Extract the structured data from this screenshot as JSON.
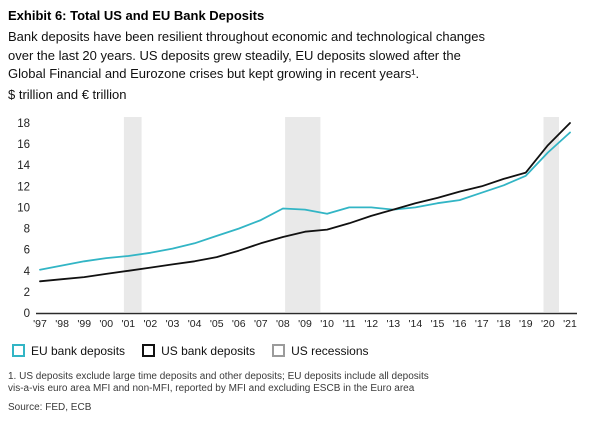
{
  "exhibit": {
    "title": "Exhibit 6: Total US and EU Bank Deposits",
    "description_lines": [
      "Bank deposits have been resilient throughout economic and technological changes",
      "over the last 20 years. US deposits grew steadily, EU deposits slowed after the",
      "Global Financial and Eurozone crises but kept growing in recent years¹."
    ],
    "units_label": "$ trillion and € trillion"
  },
  "chart_data": {
    "type": "line",
    "title": "Exhibit 6: Total US and EU Bank Deposits",
    "ylabel": "$ trillion and € trillion",
    "xlabel": "",
    "grid": false,
    "legend_position": "bottom",
    "ylim": [
      0,
      18
    ],
    "y_ticks": [
      0,
      2,
      4,
      6,
      8,
      10,
      12,
      14,
      16,
      18
    ],
    "x_labels": [
      "'97",
      "'98",
      "'99",
      "'00",
      "'01",
      "'02",
      "'03",
      "'04",
      "'05",
      "'06",
      "'07",
      "'08",
      "'09",
      "'10",
      "'11",
      "'12",
      "'13",
      "'14",
      "'15",
      "'16",
      "'17",
      "'18",
      "'19",
      "'20",
      "'21"
    ],
    "series": [
      {
        "name": "EU bank deposits",
        "color": "#32b5c5",
        "values": [
          4.1,
          4.5,
          4.9,
          5.2,
          5.4,
          5.7,
          6.1,
          6.6,
          7.3,
          8.0,
          8.8,
          9.9,
          9.8,
          9.4,
          10.0,
          10.0,
          9.8,
          10.0,
          10.4,
          10.7,
          11.4,
          12.1,
          13.0,
          15.2,
          17.1
        ]
      },
      {
        "name": "US bank deposits",
        "color": "#111111",
        "values": [
          3.0,
          3.2,
          3.4,
          3.7,
          4.0,
          4.3,
          4.6,
          4.9,
          5.3,
          5.9,
          6.6,
          7.2,
          7.7,
          7.9,
          8.5,
          9.2,
          9.8,
          10.4,
          10.9,
          11.5,
          12.0,
          12.7,
          13.3,
          15.9,
          18.0
        ]
      }
    ],
    "recessions": [
      {
        "from": 2000.8,
        "to": 2001.6
      },
      {
        "from": 2008.1,
        "to": 2009.7
      },
      {
        "from": 2019.8,
        "to": 2020.5
      }
    ],
    "band_color": "#e9e9e9"
  },
  "legend": [
    {
      "label": "EU bank deposits",
      "color": "#32b5c5"
    },
    {
      "label": "US bank deposits",
      "color": "#111111"
    },
    {
      "label": "US recessions",
      "color": "#9b9b9b"
    }
  ],
  "footnote_lines": [
    "1. US deposits exclude large time deposits and other deposits; EU deposits include all deposits",
    "vis-a-vis euro area MFI and non-MFI, reported by MFI and excluding ESCB in the Euro area"
  ],
  "source": "Source: FED, ECB"
}
